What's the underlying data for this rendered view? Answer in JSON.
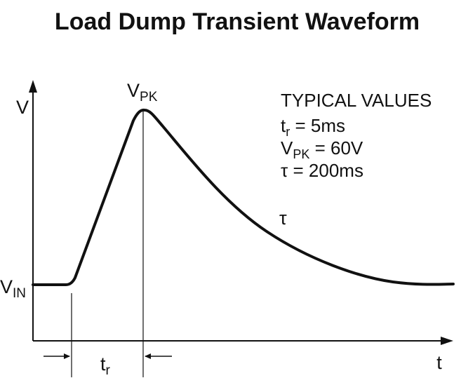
{
  "title": "Load Dump Transient Waveform",
  "axis": {
    "y_label": "V",
    "x_label": "t"
  },
  "labels": {
    "vin_main": "V",
    "vin_sub": "IN",
    "vpk_main": "V",
    "vpk_sub": "PK",
    "tr_main": "t",
    "tr_sub": "r",
    "tau": "τ"
  },
  "typical_values": {
    "heading": "TYPICAL VALUES",
    "tr_main": "t",
    "tr_sub": "r",
    "tr_value": " = 5ms",
    "vpk_main": "V",
    "vpk_sub": "PK",
    "vpk_value": " = 60V",
    "tau_symbol": "τ",
    "tau_value": " = 200ms"
  },
  "colors": {
    "ink": "#111111",
    "background": "#ffffff"
  }
}
